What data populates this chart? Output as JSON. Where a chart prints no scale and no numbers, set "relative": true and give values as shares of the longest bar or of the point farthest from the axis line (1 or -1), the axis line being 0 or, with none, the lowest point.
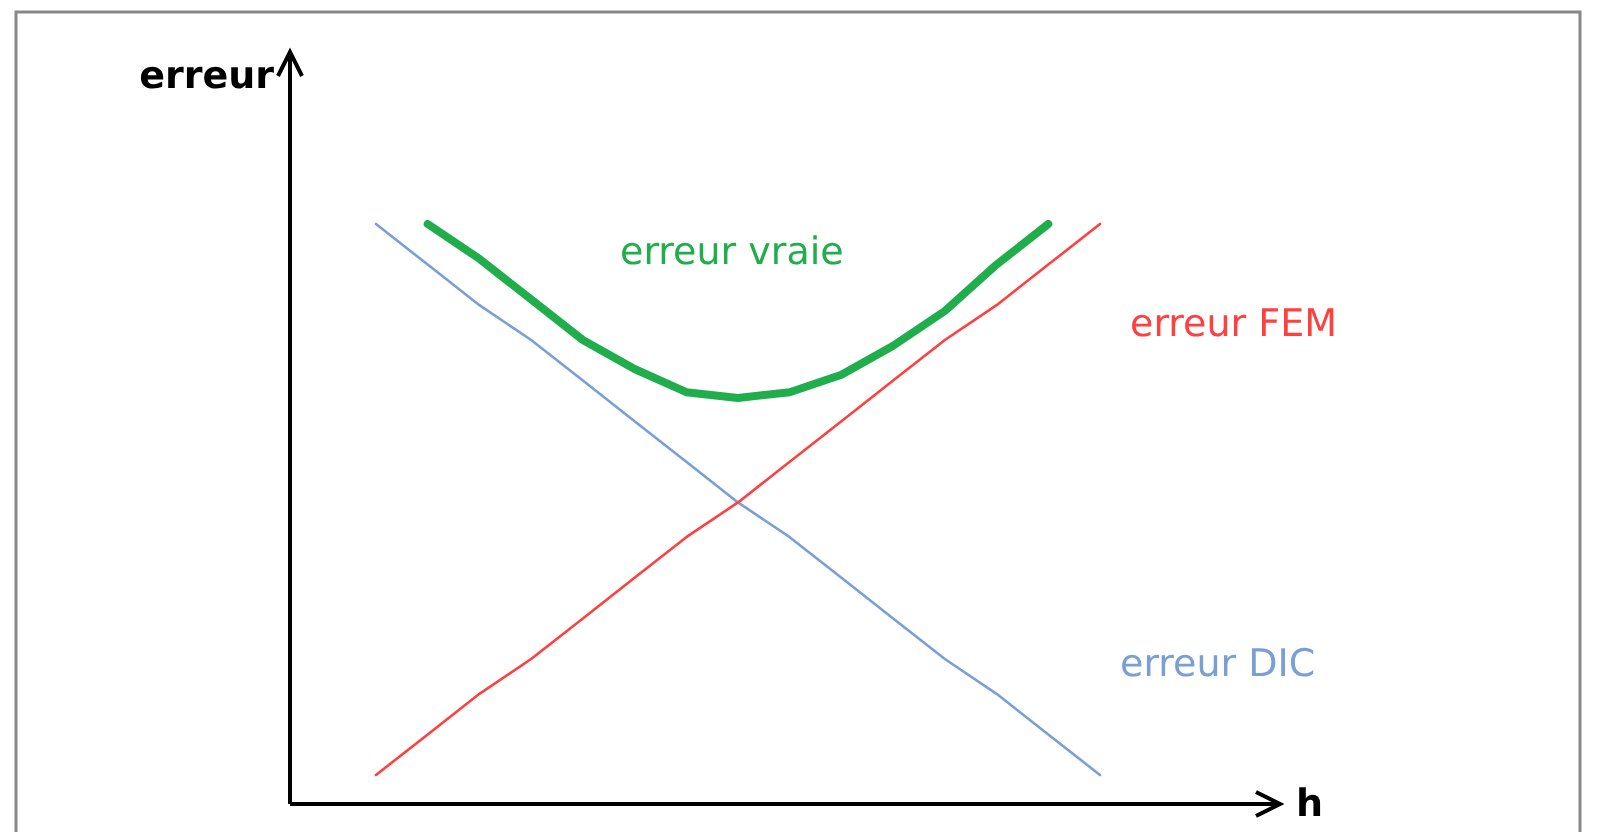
{
  "chart_data": {
    "type": "line",
    "relative": true,
    "xlabel": "h",
    "ylabel": "erreur",
    "legend": false,
    "grid": false,
    "marker": "none",
    "categories": [
      null,
      null,
      null,
      null,
      null,
      null,
      null,
      null,
      null,
      null,
      null,
      null,
      null,
      null,
      null
    ],
    "series": [
      {
        "name": "erreur DIC",
        "color": "#7a9fd4",
        "values": [
          1.0,
          0.93,
          0.86,
          0.8,
          0.73,
          0.66,
          0.59,
          0.52,
          0.46,
          0.39,
          0.32,
          0.25,
          0.19,
          0.12,
          0.05
        ]
      },
      {
        "name": "erreur FEM",
        "color": "#ff4040",
        "values": [
          0.05,
          0.12,
          0.19,
          0.25,
          0.32,
          0.39,
          0.46,
          0.52,
          0.59,
          0.66,
          0.73,
          0.8,
          0.86,
          0.93,
          1.0
        ]
      },
      {
        "name": "erreur vraie",
        "color": "#1fae4b",
        "values": [
          null,
          1.0,
          0.94,
          0.87,
          0.8,
          0.75,
          0.71,
          0.7,
          0.71,
          0.74,
          0.79,
          0.85,
          0.93,
          1.0,
          null
        ]
      }
    ]
  }
}
